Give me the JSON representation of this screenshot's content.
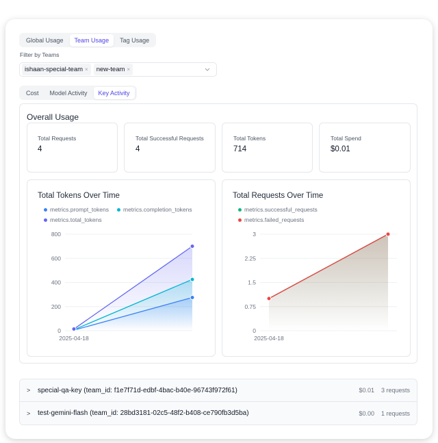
{
  "tabs": {
    "items": [
      "Global Usage",
      "Team Usage",
      "Tag Usage"
    ],
    "active": 1
  },
  "filter": {
    "label": "Filter by Teams",
    "chips": [
      "ishaan-special-team",
      "new-team"
    ],
    "remove_icon": "×"
  },
  "subtabs": {
    "items": [
      "Cost",
      "Model Activity",
      "Key Activity"
    ],
    "active": 2
  },
  "overall": {
    "title": "Overall Usage",
    "stats": [
      {
        "label": "Total Requests",
        "value": "4"
      },
      {
        "label": "Total Successful Requests",
        "value": "4"
      },
      {
        "label": "Total Tokens",
        "value": "714"
      },
      {
        "label": "Total Spend",
        "value": "$0.01"
      }
    ]
  },
  "chart_data": [
    {
      "type": "area",
      "title": "Total Tokens Over Time",
      "x": [
        "2025-04-18",
        ""
      ],
      "ylim": [
        0,
        800
      ],
      "yticks": [
        "0",
        "200",
        "400",
        "600",
        "800"
      ],
      "legend": "top-left",
      "series": [
        {
          "name": "metrics.prompt_tokens",
          "color": "#3b82f6",
          "values": [
            5,
            275
          ]
        },
        {
          "name": "metrics.completion_tokens",
          "color": "#06b6d4",
          "values": [
            8,
            425
          ]
        },
        {
          "name": "metrics.total_tokens",
          "color": "#6366f1",
          "values": [
            14,
            700
          ]
        }
      ]
    },
    {
      "type": "area",
      "title": "Total Requests Over Time",
      "x": [
        "2025-04-18",
        ""
      ],
      "ylim": [
        0,
        3
      ],
      "yticks": [
        "0",
        "0.75",
        "1.5",
        "2.25",
        "3"
      ],
      "legend": "top-left",
      "series": [
        {
          "name": "metrics.successful_requests",
          "color": "#10b981",
          "values": [
            1,
            3
          ]
        },
        {
          "name": "metrics.failed_requests",
          "color": "#ef4444",
          "values": [
            1,
            3
          ]
        }
      ]
    }
  ],
  "keys": [
    {
      "name": "special-qa-key (team_id: f1e7f71d-edbf-4bac-b40e-96743f972f61)",
      "cost": "$0.01",
      "requests": "3 requests"
    },
    {
      "name": "test-gemini-flash (team_id: 28bd3181-02c5-48f2-b408-ce790fb3d5ba)",
      "cost": "$0.00",
      "requests": "1 requests"
    }
  ]
}
